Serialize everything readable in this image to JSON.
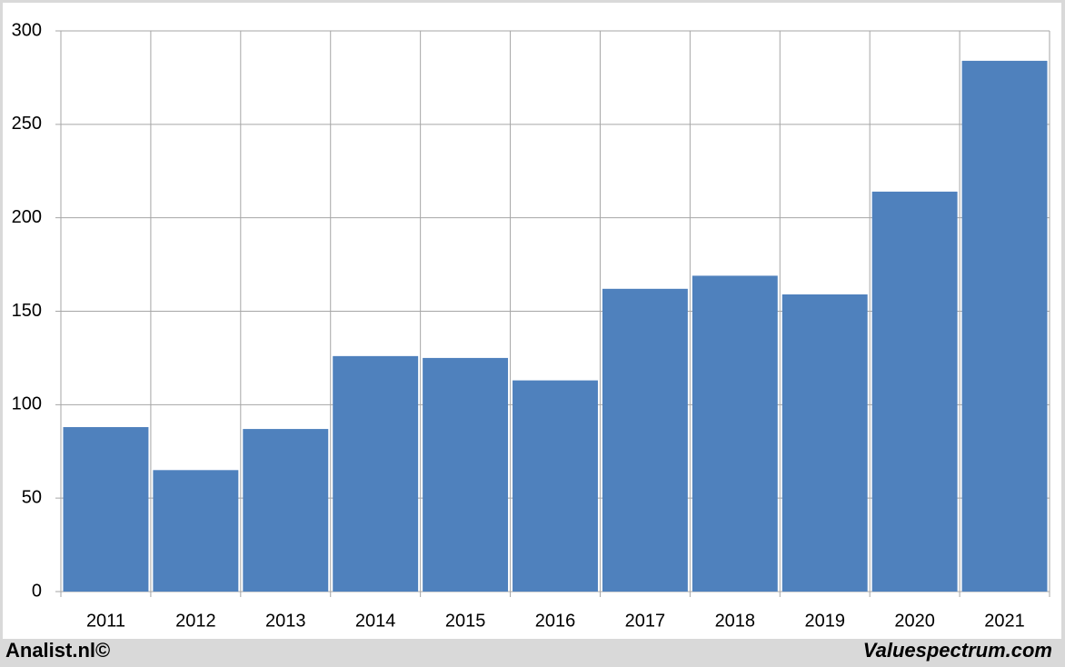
{
  "chart_data": {
    "type": "bar",
    "categories": [
      "2011",
      "2012",
      "2013",
      "2014",
      "2015",
      "2016",
      "2017",
      "2018",
      "2019",
      "2020",
      "2021"
    ],
    "values": [
      88,
      65,
      87,
      126,
      125,
      113,
      162,
      169,
      159,
      214,
      284
    ],
    "color": "#4f81bd",
    "ylim": [
      0,
      300
    ],
    "yticks": [
      0,
      50,
      100,
      150,
      200,
      250,
      300
    ],
    "grid": true
  },
  "footer": {
    "left": "Analist.nl©",
    "right": "Valuespectrum.com"
  }
}
